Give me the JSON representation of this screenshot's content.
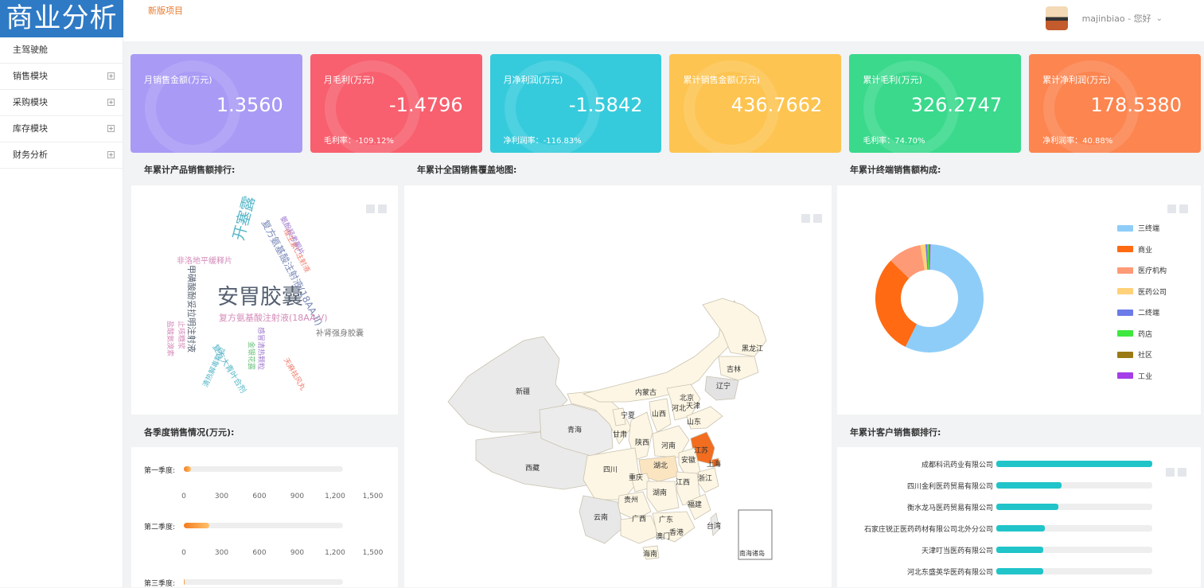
{
  "app": {
    "logo": "商业分析",
    "new_version_link": "新版项目"
  },
  "user": {
    "greeting": "majinbiao - 您好",
    "chevron": "chevron-down-icon"
  },
  "sidebar": {
    "items": [
      {
        "label": "主驾驶舱",
        "expandable": false
      },
      {
        "label": "销售模块",
        "expandable": true
      },
      {
        "label": "采购模块",
        "expandable": true
      },
      {
        "label": "库存模块",
        "expandable": true
      },
      {
        "label": "财务分析",
        "expandable": true
      }
    ]
  },
  "kpi_cards": [
    {
      "label": "月销售金额(万元)",
      "value": "1.3560",
      "sub": "",
      "color": "#a99af5"
    },
    {
      "label": "月毛利(万元)",
      "value": "-1.4796",
      "sub": "毛利率：-109.12%",
      "color": "#f8606f"
    },
    {
      "label": "月净利润(万元)",
      "value": "-1.5842",
      "sub": "净利润率：-116.83%",
      "color": "#36cbdc"
    },
    {
      "label": "累计销售金额(万元)",
      "value": "436.7662",
      "sub": "",
      "color": "#fdc451"
    },
    {
      "label": "累计毛利(万元)",
      "value": "326.2747",
      "sub": "毛利率：74.70%",
      "color": "#3ad98c"
    },
    {
      "label": "累计净利润(万元)",
      "value": "178.5380",
      "sub": "净利润率：40.88%",
      "color": "#fc8550"
    }
  ],
  "sections": {
    "product_rank": "年累计产品销售额排行:",
    "map": "年累计全国销售覆盖地图:",
    "terminal": "年累计终端销售额构成:",
    "quarter": "各季度销售情况(万元):",
    "customer_rank": "年累计客户销售额排行:"
  },
  "word_cloud": [
    {
      "text": "安胃胶囊",
      "color": "#556070"
    },
    {
      "text": "开塞露",
      "color": "#54b6c8"
    },
    {
      "text": "复方氨基酸注射液(18AA-II)",
      "color": "#7a8ab8"
    },
    {
      "text": "复方氨基酸注射液(18AA-V)",
      "color": "#d48ab8"
    },
    {
      "text": "补肾强身胶囊",
      "color": "#7a7a7a"
    },
    {
      "text": "非洛地平缓释片",
      "color": "#d48ab8"
    },
    {
      "text": "维生素C注射液",
      "color": "#f07c6c"
    },
    {
      "text": "氨酚羟考酮片",
      "color": "#a07ad0"
    },
    {
      "text": "甲磺酸酚妥拉明注射液",
      "color": "#556070"
    },
    {
      "text": "复方大青叶合剂",
      "color": "#54b6c8"
    },
    {
      "text": "天麻祛风丸",
      "color": "#f07c6c"
    },
    {
      "text": "金银花露",
      "color": "#6ac07a"
    },
    {
      "text": "感冒清热颗粒",
      "color": "#a07ad0"
    },
    {
      "text": "清热解毒颗粒",
      "color": "#54b6c8"
    },
    {
      "text": "盐酸氨溴索",
      "color": "#d48ab8"
    },
    {
      "text": "止咳糖浆",
      "color": "#d48ab8"
    }
  ],
  "map_provinces": [
    "黑龙江",
    "吉林",
    "辽宁",
    "内蒙古",
    "新疆",
    "青海",
    "西藏",
    "甘肃",
    "宁夏",
    "山西",
    "河北",
    "北京",
    "天津",
    "山东",
    "陕西",
    "河南",
    "江苏",
    "安徽",
    "上海",
    "四川",
    "湖北",
    "重庆",
    "江西",
    "浙江",
    "贵州",
    "湖南",
    "福建",
    "云南",
    "广西",
    "广东",
    "台湾",
    "香港",
    "澳门",
    "海南",
    "南海诸岛"
  ],
  "quarter_chart": {
    "ticks": [
      "0",
      "300",
      "600",
      "900",
      "1,200",
      "1,500"
    ],
    "rows": [
      {
        "label": "第一季度:",
        "value": 70
      },
      {
        "label": "第二季度:",
        "value": 240
      },
      {
        "label": "第三季度:",
        "value": 10
      }
    ],
    "max": 1500
  },
  "chart_data": [
    {
      "type": "pie",
      "title": "年累计终端销售额构成:",
      "categories": [
        "三终端",
        "商业",
        "医疗机构",
        "医药公司",
        "二终端",
        "药店",
        "社区",
        "工业"
      ],
      "values": [
        57,
        30,
        10,
        1.5,
        0.5,
        0.5,
        0.3,
        0.2
      ],
      "colors": [
        "#8ecdf8",
        "#ff6a12",
        "#ff9a76",
        "#ffd27a",
        "#6b7be8",
        "#3ee83e",
        "#9a7a14",
        "#a43ee8"
      ],
      "legend": "right"
    },
    {
      "type": "bar",
      "title": "年累计客户销售额排行:",
      "categories": [
        "成都科讯药业有限公司",
        "四川金利医药贸易有限公司",
        "衡水龙马医药贸易有限公司",
        "石家庄锐正医药药材有限公司北外分公司",
        "天津叮当医药有限公司",
        "河北东盛英华医药有限公司"
      ],
      "values": [
        100,
        42,
        40,
        31,
        30,
        30
      ]
    },
    {
      "type": "bar",
      "title": "各季度销售情况(万元):",
      "categories": [
        "第一季度:",
        "第二季度:",
        "第三季度:"
      ],
      "values": [
        70,
        240,
        10
      ],
      "ylim": [
        0,
        1500
      ]
    }
  ]
}
